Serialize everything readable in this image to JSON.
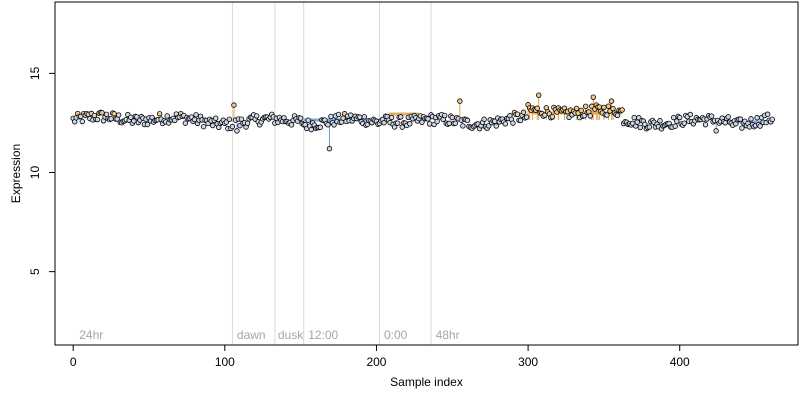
{
  "chart_data": {
    "type": "scatter",
    "title": "",
    "xlabel": "Sample index",
    "ylabel": "Expression",
    "xlim": [
      -12,
      478
    ],
    "ylim": [
      1.3,
      18.6
    ],
    "x_ticks": [
      0,
      100,
      200,
      300,
      400
    ],
    "y_ticks": [
      5,
      10,
      15
    ],
    "x_tick_labels": [
      "0",
      "100",
      "200",
      "300",
      "400"
    ],
    "y_tick_labels": [
      "5",
      "10",
      "15"
    ],
    "grid": false,
    "legend": "none",
    "phase_boundaries": [
      105,
      133,
      152,
      202,
      236
    ],
    "phase_labels": [
      {
        "text": "24hr",
        "x": 2
      },
      {
        "text": "dawn",
        "x": 106
      },
      {
        "text": "dusk",
        "x": 133
      },
      {
        "text": "12:00",
        "x": 153
      },
      {
        "text": "0:00",
        "x": 203
      },
      {
        "text": "48hr",
        "x": 237
      }
    ],
    "baseline": 12.65,
    "highlight_segments": [
      {
        "x": [
          152,
          202
        ],
        "y": 12.65,
        "color": "#6f95d6"
      },
      {
        "x": [
          208,
          228
        ],
        "y": 12.95,
        "color": "#e0a050"
      },
      {
        "x": [
          302,
          362
        ],
        "y": 13.0,
        "color": "#e0a050"
      },
      {
        "x": [
          435,
          462
        ],
        "y": 12.55,
        "color": "#6f95d6"
      }
    ],
    "n_points": 462,
    "point_colors": {
      "normal": "#cfd8e8",
      "high": "#f3c98a",
      "edge": "#000000",
      "spike": "#e0a050"
    },
    "notable_points": [
      {
        "x": 106,
        "y": 13.4
      },
      {
        "x": 108,
        "y": 12.1
      },
      {
        "x": 169,
        "y": 11.2
      },
      {
        "x": 255,
        "y": 13.6
      },
      {
        "x": 307,
        "y": 13.9
      },
      {
        "x": 343,
        "y": 13.8
      },
      {
        "x": 355,
        "y": 13.6
      },
      {
        "x": 424,
        "y": 12.1
      }
    ]
  }
}
